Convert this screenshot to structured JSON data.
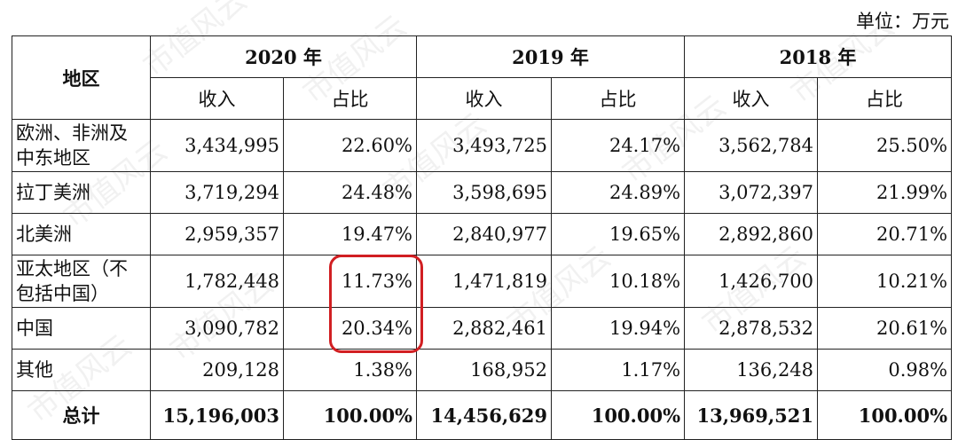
{
  "unit_label": "单位：万元",
  "header": {
    "region_col": "地区",
    "years": [
      "2020 年",
      "2019 年",
      "2018 年"
    ],
    "sub": [
      "收入",
      "占比"
    ]
  },
  "rows": [
    {
      "region_line1": "欧洲、非洲及",
      "region_line2": "中东地区",
      "y2020": {
        "rev": "3,434,995",
        "pct": "22.60%"
      },
      "y2019": {
        "rev": "3,493,725",
        "pct": "24.17%"
      },
      "y2018": {
        "rev": "3,562,784",
        "pct": "25.50%"
      }
    },
    {
      "region_line1": "拉丁美洲",
      "region_line2": "",
      "y2020": {
        "rev": "3,719,294",
        "pct": "24.48%"
      },
      "y2019": {
        "rev": "3,598,695",
        "pct": "24.89%"
      },
      "y2018": {
        "rev": "3,072,397",
        "pct": "21.99%"
      }
    },
    {
      "region_line1": "北美洲",
      "region_line2": "",
      "y2020": {
        "rev": "2,959,357",
        "pct": "19.47%"
      },
      "y2019": {
        "rev": "2,840,977",
        "pct": "19.65%"
      },
      "y2018": {
        "rev": "2,892,860",
        "pct": "20.71%"
      }
    },
    {
      "region_line1": "亚太地区（不",
      "region_line2": "包括中国）",
      "y2020": {
        "rev": "1,782,448",
        "pct": "11.73%"
      },
      "y2019": {
        "rev": "1,471,819",
        "pct": "10.18%"
      },
      "y2018": {
        "rev": "1,426,700",
        "pct": "10.21%"
      }
    },
    {
      "region_line1": "中国",
      "region_line2": "",
      "y2020": {
        "rev": "3,090,782",
        "pct": "20.34%"
      },
      "y2019": {
        "rev": "2,882,461",
        "pct": "19.94%"
      },
      "y2018": {
        "rev": "2,878,532",
        "pct": "20.61%"
      }
    },
    {
      "region_line1": "其他",
      "region_line2": "",
      "y2020": {
        "rev": "209,128",
        "pct": "1.38%"
      },
      "y2019": {
        "rev": "168,952",
        "pct": "1.17%"
      },
      "y2018": {
        "rev": "136,248",
        "pct": "0.98%"
      }
    }
  ],
  "total": {
    "label": "总计",
    "y2020": {
      "rev": "15,196,003",
      "pct": "100.00%"
    },
    "y2019": {
      "rev": "14,456,629",
      "pct": "100.00%"
    },
    "y2018": {
      "rev": "13,969,521",
      "pct": "100.00%"
    }
  },
  "watermark_text": "市值风云",
  "highlight_color": "#d11f22"
}
